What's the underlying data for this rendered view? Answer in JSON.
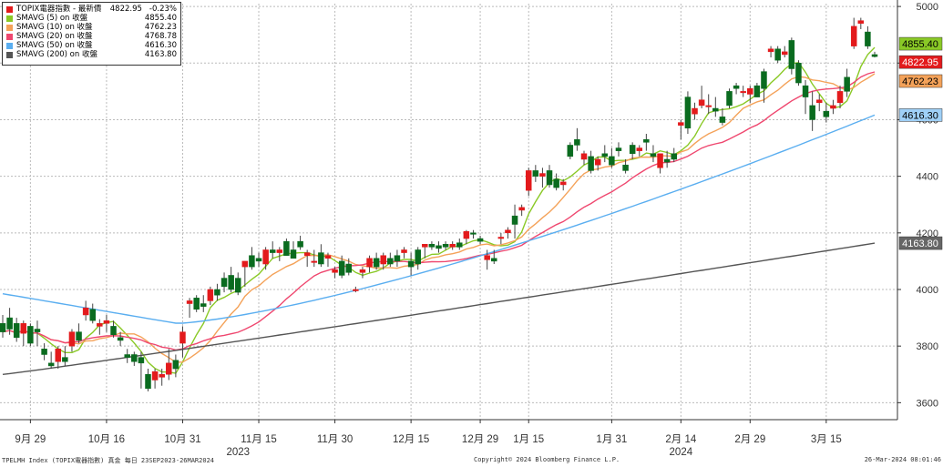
{
  "chart_data": {
    "type": "candlestick",
    "title": "TOPIX電器指數",
    "y_axis": {
      "ticks": [
        3600,
        3800,
        4000,
        4200,
        4400,
        4600,
        4800,
        5000
      ],
      "range": [
        3540,
        5010
      ],
      "position": "right"
    },
    "x_axis": {
      "date_ticks": [
        {
          "label": "9月 29",
          "day": 4
        },
        {
          "label": "10月 16",
          "day": 15
        },
        {
          "label": "10月 31",
          "day": 26
        },
        {
          "label": "11月 15",
          "day": 37
        },
        {
          "label": "11月 30",
          "day": 48
        },
        {
          "label": "12月 15",
          "day": 59
        },
        {
          "label": "12月 29",
          "day": 69
        },
        {
          "label": "1月 15",
          "day": 76
        },
        {
          "label": "1月 31",
          "day": 88
        },
        {
          "label": "2月 14",
          "day": 98
        },
        {
          "label": "2月 29",
          "day": 108
        },
        {
          "label": "3月 15",
          "day": 119
        }
      ],
      "years": [
        {
          "label": "2023",
          "day": 34
        },
        {
          "label": "2024",
          "day": 98
        }
      ],
      "day_range": [
        0,
        126
      ]
    },
    "candles_ohlc": [
      [
        3880,
        3910,
        3830,
        3850
      ],
      [
        3900,
        3935,
        3840,
        3860
      ],
      [
        3880,
        3900,
        3815,
        3830
      ],
      [
        3845,
        3890,
        3800,
        3880
      ],
      [
        3870,
        3880,
        3800,
        3810
      ],
      [
        3860,
        3890,
        3800,
        3850
      ],
      [
        3790,
        3810,
        3750,
        3770
      ],
      [
        3740,
        3780,
        3720,
        3730
      ],
      [
        3745,
        3800,
        3720,
        3790
      ],
      [
        3760,
        3800,
        3730,
        3745
      ],
      [
        3800,
        3860,
        3780,
        3850
      ],
      [
        3850,
        3880,
        3810,
        3820
      ],
      [
        3910,
        3960,
        3890,
        3935
      ],
      [
        3930,
        3950,
        3880,
        3890
      ],
      [
        3870,
        3895,
        3840,
        3880
      ],
      [
        3880,
        3910,
        3850,
        3890
      ],
      [
        3870,
        3890,
        3830,
        3840
      ],
      [
        3830,
        3850,
        3800,
        3820
      ],
      [
        3770,
        3790,
        3740,
        3760
      ],
      [
        3770,
        3780,
        3730,
        3745
      ],
      [
        3760,
        3780,
        3650,
        3740
      ],
      [
        3700,
        3720,
        3640,
        3650
      ],
      [
        3680,
        3720,
        3650,
        3710
      ],
      [
        3690,
        3720,
        3660,
        3700
      ],
      [
        3700,
        3790,
        3680,
        3740
      ],
      [
        3750,
        3770,
        3690,
        3720
      ],
      [
        3810,
        3870,
        3760,
        3850
      ],
      [
        3950,
        3970,
        3900,
        3960
      ],
      [
        3970,
        3980,
        3920,
        3930
      ],
      [
        3950,
        3980,
        3920,
        3940
      ],
      [
        3960,
        4010,
        3945,
        4000
      ],
      [
        4000,
        4020,
        3960,
        3980
      ],
      [
        4040,
        4060,
        3990,
        4010
      ],
      [
        4050,
        4080,
        3990,
        4000
      ],
      [
        4040,
        4060,
        3980,
        3990
      ],
      [
        4080,
        4100,
        4010,
        4100
      ],
      [
        4120,
        4150,
        4070,
        4080
      ],
      [
        4110,
        4130,
        4080,
        4100
      ],
      [
        4090,
        4150,
        4070,
        4140
      ],
      [
        4140,
        4170,
        4110,
        4130
      ],
      [
        4130,
        4150,
        4100,
        4140
      ],
      [
        4170,
        4180,
        4120,
        4120
      ],
      [
        4140,
        4170,
        4110,
        4110
      ],
      [
        4170,
        4190,
        4140,
        4150
      ],
      [
        4120,
        4140,
        4080,
        4130
      ],
      [
        4100,
        4140,
        4080,
        4100
      ],
      [
        4130,
        4160,
        4080,
        4090
      ],
      [
        4110,
        4130,
        4080,
        4120
      ],
      [
        4060,
        4080,
        4040,
        4070
      ],
      [
        4100,
        4120,
        4040,
        4050
      ],
      [
        4090,
        4110,
        4050,
        4060
      ],
      [
        4000,
        4010,
        3990,
        4000
      ],
      [
        4060,
        4080,
        4040,
        4070
      ],
      [
        4080,
        4120,
        4060,
        4110
      ],
      [
        4110,
        4130,
        4070,
        4080
      ],
      [
        4090,
        4130,
        4070,
        4120
      ],
      [
        4110,
        4130,
        4080,
        4090
      ],
      [
        4120,
        4140,
        4080,
        4100
      ],
      [
        4130,
        4150,
        4110,
        4140
      ],
      [
        4100,
        4130,
        4050,
        4080
      ],
      [
        4140,
        4150,
        4070,
        4090
      ],
      [
        4150,
        4160,
        4110,
        4160
      ],
      [
        4160,
        4170,
        4140,
        4150
      ],
      [
        4155,
        4170,
        4130,
        4145
      ],
      [
        4160,
        4170,
        4140,
        4150
      ],
      [
        4150,
        4170,
        4140,
        4160
      ],
      [
        4165,
        4180,
        4140,
        4150
      ],
      [
        4180,
        4210,
        4160,
        4205
      ],
      [
        4200,
        4210,
        4180,
        4195
      ],
      [
        4180,
        4190,
        4160,
        4170
      ],
      [
        4105,
        4140,
        4070,
        4120
      ],
      [
        4110,
        4140,
        4090,
        4100
      ],
      [
        4180,
        4200,
        4160,
        4185
      ],
      [
        4200,
        4220,
        4180,
        4210
      ],
      [
        4260,
        4300,
        4180,
        4230
      ],
      [
        4280,
        4300,
        4260,
        4290
      ],
      [
        4350,
        4430,
        4330,
        4420
      ],
      [
        4420,
        4440,
        4380,
        4400
      ],
      [
        4400,
        4430,
        4360,
        4410
      ],
      [
        4420,
        4440,
        4360,
        4370
      ],
      [
        4390,
        4410,
        4350,
        4360
      ],
      [
        4370,
        4390,
        4350,
        4380
      ],
      [
        4510,
        4520,
        4460,
        4470
      ],
      [
        4530,
        4570,
        4490,
        4510
      ],
      [
        4460,
        4490,
        4440,
        4480
      ],
      [
        4470,
        4490,
        4410,
        4420
      ],
      [
        4440,
        4470,
        4420,
        4460
      ],
      [
        4480,
        4510,
        4450,
        4470
      ],
      [
        4470,
        4500,
        4430,
        4440
      ],
      [
        4500,
        4520,
        4470,
        4490
      ],
      [
        4440,
        4460,
        4410,
        4420
      ],
      [
        4510,
        4520,
        4460,
        4480
      ],
      [
        4490,
        4510,
        4470,
        4500
      ],
      [
        4530,
        4550,
        4490,
        4520
      ],
      [
        4480,
        4510,
        4450,
        4470
      ],
      [
        4430,
        4480,
        4410,
        4480
      ],
      [
        4460,
        4490,
        4430,
        4450
      ],
      [
        4480,
        4500,
        4450,
        4460
      ],
      [
        4580,
        4600,
        4530,
        4590
      ],
      [
        4680,
        4700,
        4550,
        4570
      ],
      [
        4620,
        4660,
        4600,
        4640
      ],
      [
        4650,
        4720,
        4640,
        4670
      ],
      [
        4650,
        4690,
        4620,
        4650
      ],
      [
        4640,
        4680,
        4610,
        4630
      ],
      [
        4610,
        4640,
        4580,
        4590
      ],
      [
        4700,
        4710,
        4640,
        4650
      ],
      [
        4720,
        4730,
        4690,
        4710
      ],
      [
        4700,
        4720,
        4680,
        4700
      ],
      [
        4690,
        4720,
        4660,
        4710
      ],
      [
        4720,
        4730,
        4680,
        4680
      ],
      [
        4770,
        4780,
        4660,
        4710
      ],
      [
        4840,
        4860,
        4820,
        4850
      ],
      [
        4850,
        4860,
        4800,
        4810
      ],
      [
        4830,
        4860,
        4820,
        4840
      ],
      [
        4880,
        4890,
        4760,
        4780
      ],
      [
        4800,
        4810,
        4720,
        4730
      ],
      [
        4720,
        4740,
        4620,
        4680
      ],
      [
        4650,
        4700,
        4560,
        4600
      ],
      [
        4660,
        4690,
        4630,
        4670
      ],
      [
        4630,
        4660,
        4590,
        4610
      ],
      [
        4640,
        4670,
        4620,
        4650
      ],
      [
        4660,
        4720,
        4640,
        4700
      ],
      [
        4750,
        4780,
        4680,
        4700
      ],
      [
        4860,
        4960,
        4850,
        4930
      ],
      [
        4940,
        4960,
        4920,
        4950
      ],
      [
        4910,
        4930,
        4850,
        4860
      ],
      [
        4830,
        4840,
        4820,
        4823
      ]
    ],
    "series": [
      {
        "name": "SMAVG (5)  on 收盤",
        "color": "#8ac926",
        "last": 4855.4
      },
      {
        "name": "SMAVG (10)  on 收盤",
        "color": "#f4a259",
        "last": 4762.23
      },
      {
        "name": "SMAVG (20)  on 收盤",
        "color": "#ef476f",
        "last": 4768.78
      },
      {
        "name": "SMAVG (50)  on 收盤",
        "color": "#5aaef0",
        "last": 4616.3
      },
      {
        "name": "SMAVG (200)  on 收盤",
        "color": "#555555",
        "last": 4163.8
      }
    ]
  },
  "legend": {
    "rows": [
      {
        "label": "TOPIX電器指數 - 最新價",
        "value": "4822.95",
        "change": "-0.23%",
        "color": "#e31a1c"
      },
      {
        "label": "SMAVG (5)  on 收盤",
        "value": "4855.40",
        "change": "",
        "color": "#8ac926"
      },
      {
        "label": "SMAVG (10)  on 收盤",
        "value": "4762.23",
        "change": "",
        "color": "#f4a259"
      },
      {
        "label": "SMAVG (20)  on 收盤",
        "value": "4768.78",
        "change": "",
        "color": "#ef476f"
      },
      {
        "label": "SMAVG (50)  on 收盤",
        "value": "4616.30",
        "change": "",
        "color": "#5aaef0"
      },
      {
        "label": "SMAVG (200)  on 收盤",
        "value": "4163.80",
        "change": "",
        "color": "#555555"
      }
    ]
  },
  "price_tags": [
    {
      "text": "4855.40",
      "value": 4855.4,
      "bg": "#8ac926",
      "fg": "#000000"
    },
    {
      "text": "4822.95",
      "value": 4822.95,
      "bg": "#e31a1c",
      "fg": "#ffffff"
    },
    {
      "text": "4762.23",
      "value": 4762.23,
      "bg": "#f4a259",
      "fg": "#000000"
    },
    {
      "text": "4616.30",
      "value": 4616.3,
      "bg": "#9fd0f7",
      "fg": "#000000"
    },
    {
      "text": "4163.80",
      "value": 4163.8,
      "bg": "#666666",
      "fg": "#ffffff"
    }
  ],
  "colors": {
    "up": "#e31a1c",
    "down": "#0a6b1f",
    "grid": "#bbbbbb",
    "axis_text": "#333333"
  },
  "footer": {
    "left": "TPELMH Index (TOPIX電器指數) 真金  每日 23SEP2023-26MAR2024",
    "center": "Copyright© 2024 Bloomberg Finance L.P.",
    "right": "26-Mar-2024 08:01:46"
  }
}
